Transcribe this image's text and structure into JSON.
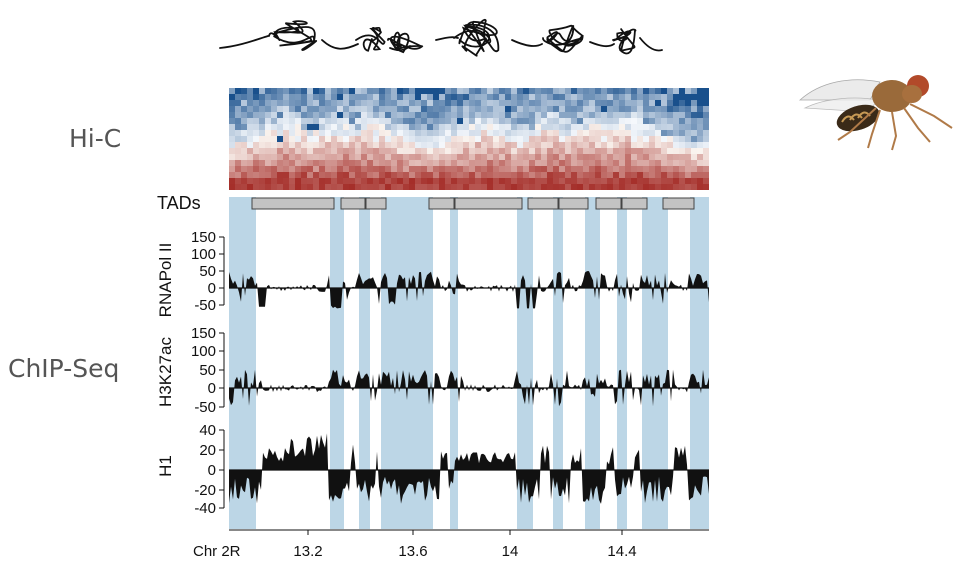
{
  "labels": {
    "hic": "Hi-C",
    "chipseq": "ChIP-Seq",
    "tads": "TADs",
    "chr": "Chr 2R"
  },
  "tracks": [
    {
      "name": "RNAPol II",
      "ticks": [
        "150",
        "100",
        "50",
        "0",
        "-50"
      ]
    },
    {
      "name": "H3K27ac",
      "ticks": [
        "150",
        "100",
        "50",
        "0",
        "-50"
      ]
    },
    {
      "name": "H1",
      "ticks": [
        "40",
        "20",
        "0",
        "-20",
        "-40"
      ]
    }
  ],
  "xaxis": {
    "ticks": [
      "13.2",
      "13.6",
      "14",
      "14.4"
    ]
  },
  "tad_count": 10,
  "colors": {
    "tad_shade": "#bcd6e6",
    "tad_box": "#c3c3c3",
    "hic_high": "#b2402f",
    "hic_low": "#2f6a9a",
    "label_grey": "#555555"
  },
  "icons": [
    "chromatin-fiber-icon",
    "fruit-fly-icon"
  ]
}
